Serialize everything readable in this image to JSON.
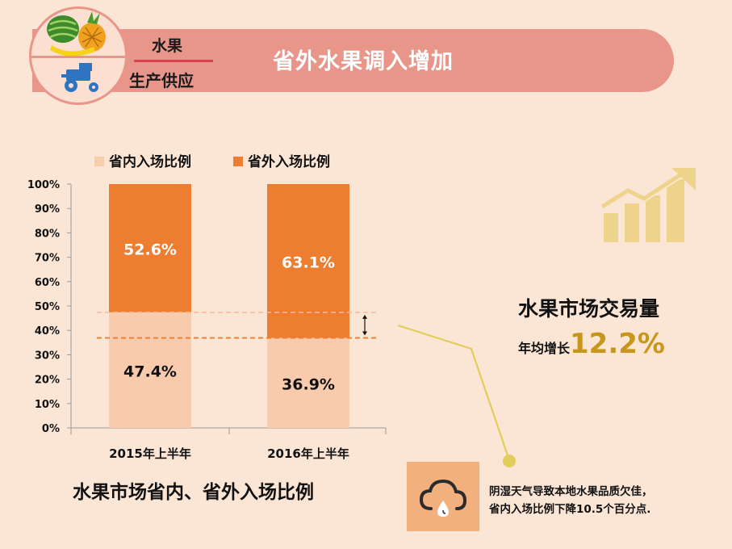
{
  "header": {
    "category_top": "水果",
    "category_bottom": "生产供应",
    "title": "省外水果调入增加"
  },
  "icons": {
    "badge_top": "fruit-basket-icon",
    "badge_bottom": "tractor-icon",
    "trend": "rising-bar-chart-icon",
    "weather": "cloud-rain-icon"
  },
  "colors": {
    "banner": "#e8968a",
    "in_province": "#f8cbad",
    "out_province": "#ed7d31",
    "accent_gold": "#c8961a",
    "connector": "#e2cc5a"
  },
  "chart_data": {
    "type": "bar",
    "stacked": true,
    "categories": [
      "2015年上半年",
      "2016年上半年"
    ],
    "series": [
      {
        "name": "省内入场比例",
        "values": [
          47.4,
          36.9
        ],
        "labels": [
          "47.4%",
          "36.9%"
        ],
        "color": "#f8cbad"
      },
      {
        "name": "省外入场比例",
        "values": [
          52.6,
          63.1
        ],
        "labels": [
          "52.6%",
          "63.1%"
        ],
        "color": "#ed7d31"
      }
    ],
    "yticks": [
      "0%",
      "10%",
      "20%",
      "30%",
      "40%",
      "50%",
      "60%",
      "70%",
      "80%",
      "90%",
      "100%"
    ],
    "ylim": [
      0,
      100
    ],
    "legend": "top",
    "grid": false,
    "caption": "水果市场省内、省外入场比例"
  },
  "stat": {
    "title": "水果市场交易量",
    "label": "年均增长",
    "value": "12.2%"
  },
  "note": {
    "line1": "阴湿天气导致本地水果品质欠佳，",
    "line2": "省内入场比例下降10.5个百分点."
  }
}
